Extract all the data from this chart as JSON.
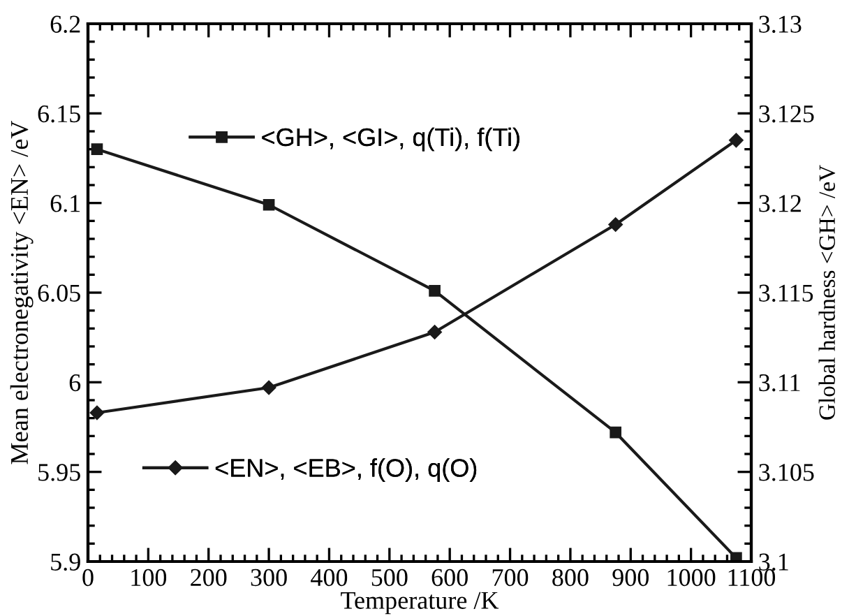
{
  "chart_data": {
    "type": "line",
    "xlabel": "Temperature /K",
    "ylabel": "Mean electronegativity <EN> /eV",
    "y2label": "Global hardness <GH> /eV",
    "xlim": [
      0,
      1100
    ],
    "xticks": [
      0,
      100,
      200,
      300,
      400,
      500,
      600,
      700,
      800,
      900,
      1000,
      1100
    ],
    "ylim": [
      5.9,
      6.2
    ],
    "yticks": [
      5.9,
      5.95,
      6,
      6.05,
      6.1,
      6.15,
      6.2
    ],
    "y2lim": [
      3.1,
      3.13
    ],
    "y2ticks": [
      3.1,
      3.105,
      3.11,
      3.115,
      3.12,
      3.125,
      3.13
    ],
    "legend": "left",
    "grid": false,
    "line_style": "solid",
    "series": [
      {
        "name": "<GH>, <GI>, q(Ti), f(Ti)",
        "color": "#1a1a1a",
        "axis": "y2",
        "marker": "square",
        "x": [
          15,
          300,
          575,
          875,
          1075
        ],
        "values": [
          3.123,
          3.1199,
          3.1151,
          3.1072,
          3.1002
        ]
      },
      {
        "name": "<EN>, <EB>, f(O), q(O)",
        "color": "#1a1a1a",
        "axis": "y",
        "marker": "diamond",
        "x": [
          15,
          300,
          575,
          875,
          1075
        ],
        "values": [
          5.983,
          5.997,
          6.028,
          6.088,
          6.135
        ]
      }
    ]
  }
}
